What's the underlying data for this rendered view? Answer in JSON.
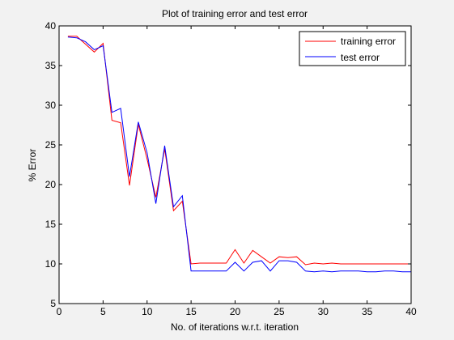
{
  "chart_data": {
    "type": "line",
    "title": "Plot of training error and test error",
    "xlabel": "No. of iterations w.r.t. iteration",
    "ylabel": "% Error",
    "xlim": [
      0,
      40
    ],
    "ylim": [
      5,
      40
    ],
    "xticks": [
      0,
      5,
      10,
      15,
      20,
      25,
      30,
      35,
      40
    ],
    "yticks": [
      5,
      10,
      15,
      20,
      25,
      30,
      35,
      40
    ],
    "grid": false,
    "legend_position": "top-right",
    "x": [
      1,
      2,
      3,
      4,
      5,
      6,
      7,
      8,
      9,
      10,
      11,
      12,
      13,
      14,
      15,
      16,
      17,
      18,
      19,
      20,
      21,
      22,
      23,
      24,
      25,
      26,
      27,
      28,
      29,
      30,
      31,
      32,
      33,
      34,
      35,
      36,
      37,
      38,
      39,
      40
    ],
    "series": [
      {
        "name": "training error",
        "color": "#ff0000",
        "values": [
          38.7,
          38.7,
          37.7,
          36.7,
          37.8,
          28.1,
          27.8,
          19.9,
          27.6,
          23.2,
          18.4,
          24.5,
          16.7,
          17.9,
          10.0,
          10.1,
          10.1,
          10.1,
          10.1,
          11.8,
          10.1,
          11.7,
          10.9,
          10.1,
          10.9,
          10.8,
          10.9,
          9.9,
          10.1,
          10.0,
          10.1,
          10.0,
          10.0,
          10.0,
          10.0,
          10.0,
          10.0,
          10.0,
          10.0,
          10.0
        ]
      },
      {
        "name": "test error",
        "color": "#0000ff",
        "values": [
          38.6,
          38.5,
          38.0,
          37.0,
          37.5,
          29.1,
          29.6,
          21.0,
          27.9,
          24.0,
          17.6,
          24.9,
          17.2,
          18.6,
          9.1,
          9.1,
          9.1,
          9.1,
          9.1,
          10.2,
          9.1,
          10.2,
          10.4,
          9.1,
          10.4,
          10.4,
          10.2,
          9.1,
          9.0,
          9.1,
          9.0,
          9.1,
          9.1,
          9.1,
          9.0,
          9.0,
          9.1,
          9.1,
          9.0,
          9.0
        ]
      }
    ]
  }
}
